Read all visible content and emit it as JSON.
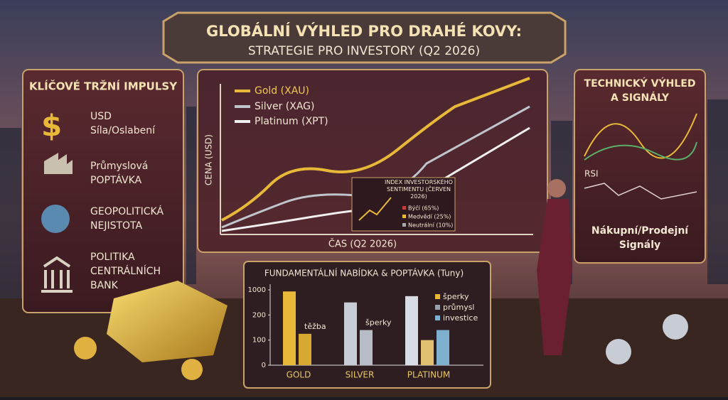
{
  "header": {
    "title": "GLOBÁLNÍ VÝHLED PRO DRAHÉ KOVY:",
    "subtitle": "STRATEGIE PRO INVESTORY (Q2 2026)"
  },
  "drivers": {
    "title": "KLÍČOVÉ TRŽNÍ IMPULSY",
    "items": [
      {
        "line1": "USD",
        "line2": "Síla/Oslabení"
      },
      {
        "line1": "Průmyslová",
        "line2": "POPTÁVKA"
      },
      {
        "line1": "GEOPOLITICKÁ",
        "line2": "NEJISTOTA"
      },
      {
        "line1": "POLITIKA",
        "line2": "CENTRÁLNÍCH",
        "line3": "BANK"
      }
    ]
  },
  "price_chart": {
    "legend": [
      "Gold (XAU)",
      "Silver (XAG)",
      "Platinum (XPT)"
    ],
    "y_label": "CENA (USD)",
    "x_label": "ČAS (Q2 2026)",
    "sentiment": {
      "title": "INDEX INVESTORSKÉHO SENTIMENTU (ČERVEN 2026)",
      "items": [
        "Býčí (65%)",
        "Medvědí (25%)",
        "Neutrální (10%)"
      ]
    }
  },
  "technical": {
    "title_line1": "TECHNICKÝ VÝHLED",
    "title_line2": "A SIGNÁLY",
    "rsi": "RSI",
    "signals_line1": "Nákupní/Prodejní",
    "signals_line2": "Signály"
  },
  "chart_data": {
    "type": "bar",
    "title": "FUNDAMENTÁLNÍ NABÍDKA & POPTÁVKA (Tuny)",
    "yticks": [
      1000,
      200,
      100,
      0
    ],
    "categories": [
      "GOLD",
      "SILVER",
      "PLATINUM"
    ],
    "groups": [
      {
        "values": [
          950,
          125
        ],
        "colors": [
          "#e8b838",
          "#d8a830"
        ],
        "annotation": "těžba"
      },
      {
        "values": [
          600,
          140
        ],
        "colors": [
          "#c8ccd4",
          "#b8bcc6"
        ],
        "annotation": "šperky"
      },
      {
        "values": [
          800,
          100,
          140
        ],
        "colors": [
          "#d8dce4",
          "#e0c070",
          "#7fb0d0"
        ]
      }
    ],
    "series": [
      {
        "name": "šperky",
        "color": "#e8b838"
      },
      {
        "name": "průmysl",
        "color": "#9aa0a8"
      },
      {
        "name": "investice",
        "color": "#7fb0d0"
      }
    ]
  }
}
